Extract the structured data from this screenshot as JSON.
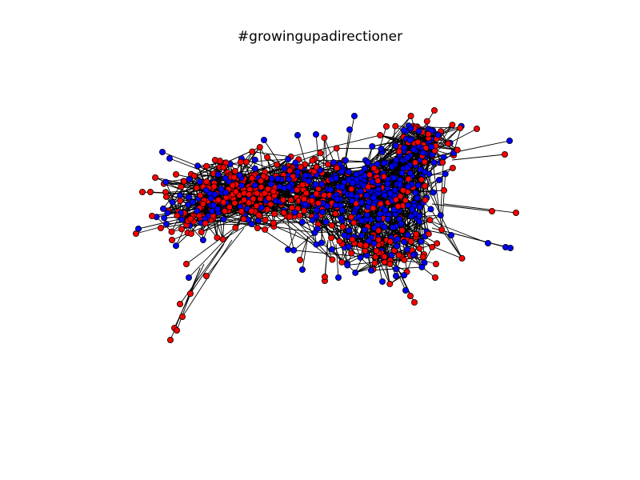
{
  "figure": {
    "title": "#growingupadirectioner"
  },
  "graph": {
    "node_colors": [
      "#ff0000",
      "#0000ff"
    ],
    "node_color_names": [
      "red",
      "blue"
    ],
    "edge_color": "#000000",
    "node_outline_color": "#000000",
    "background_color": "#ffffff"
  }
}
